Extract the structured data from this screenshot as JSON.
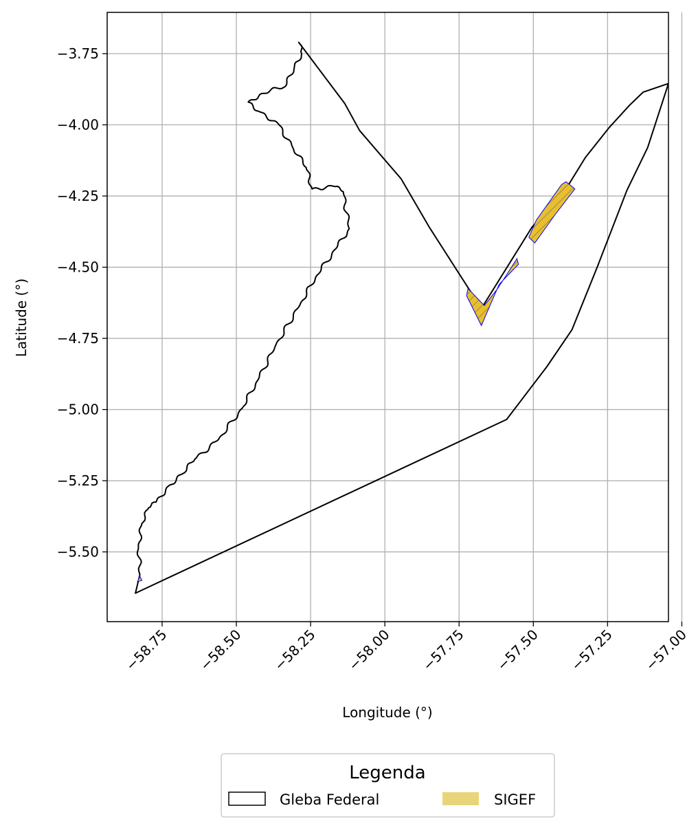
{
  "chart_data": {
    "type": "map",
    "xlabel": "Longitude (°)",
    "ylabel": "Latitude (°)",
    "xlim": [
      -58.935,
      -57.045
    ],
    "ylim": [
      -5.745,
      -3.605
    ],
    "x_ticks": [
      -58.75,
      -58.5,
      -58.25,
      -58.0,
      -57.75,
      -57.5,
      -57.25,
      -57.0
    ],
    "x_tick_labels": [
      "−58.75",
      "−58.50",
      "−58.25",
      "−58.00",
      "−57.75",
      "−57.50",
      "−57.25",
      "−57.00"
    ],
    "y_ticks": [
      -3.75,
      -4.0,
      -4.25,
      -4.5,
      -4.75,
      -5.0,
      -5.25,
      -5.5
    ],
    "y_tick_labels": [
      "−3.75",
      "−4.00",
      "−4.25",
      "−4.50",
      "−4.75",
      "−5.00",
      "−5.25",
      "−5.50"
    ],
    "grid": true,
    "legend": {
      "title": "Legenda",
      "placement": "bottom-center, outside plot",
      "entries": [
        {
          "label": "Gleba Federal",
          "style": "outline"
        },
        {
          "label": "SIGEF",
          "style": "fill"
        }
      ]
    },
    "layers": [
      {
        "name": "Gleba Federal",
        "color": "#000000",
        "fill": "none",
        "river_boundary_wiggle": true,
        "vertices": [
          [
            -58.84,
            -5.645
          ],
          [
            -58.825,
            -5.58
          ],
          [
            -58.83,
            -5.48
          ],
          [
            -58.818,
            -5.4
          ],
          [
            -58.795,
            -5.345
          ],
          [
            -58.77,
            -5.325
          ],
          [
            -58.73,
            -5.27
          ],
          [
            -58.68,
            -5.225
          ],
          [
            -58.64,
            -5.175
          ],
          [
            -58.56,
            -5.105
          ],
          [
            -58.48,
            -4.995
          ],
          [
            -58.43,
            -4.9
          ],
          [
            -58.37,
            -4.78
          ],
          [
            -58.285,
            -4.63
          ],
          [
            -58.23,
            -4.53
          ],
          [
            -58.165,
            -4.435
          ],
          [
            -58.12,
            -4.365
          ],
          [
            -58.14,
            -4.235
          ],
          [
            -58.175,
            -4.215
          ],
          [
            -58.245,
            -4.225
          ],
          [
            -58.265,
            -4.15
          ],
          [
            -58.31,
            -4.08
          ],
          [
            -58.36,
            -3.995
          ],
          [
            -58.42,
            -3.955
          ],
          [
            -58.46,
            -3.92
          ],
          [
            -58.415,
            -3.89
          ],
          [
            -58.335,
            -3.865
          ],
          [
            -58.305,
            -3.8
          ],
          [
            -58.28,
            -3.75
          ],
          [
            -58.29,
            -3.71
          ],
          [
            -58.135,
            -3.925
          ],
          [
            -58.085,
            -4.02
          ],
          [
            -57.945,
            -4.19
          ],
          [
            -57.85,
            -4.36
          ],
          [
            -57.675,
            -4.645
          ],
          [
            -57.505,
            -4.36
          ],
          [
            -57.39,
            -4.225
          ],
          [
            -57.325,
            -4.115
          ],
          [
            -57.245,
            -4.01
          ],
          [
            -57.175,
            -3.93
          ],
          [
            -57.13,
            -3.885
          ],
          [
            -57.045,
            -3.855
          ],
          [
            -57.115,
            -4.08
          ],
          [
            -57.185,
            -4.23
          ],
          [
            -57.285,
            -4.5
          ],
          [
            -57.37,
            -4.72
          ],
          [
            -57.455,
            -4.85
          ],
          [
            -57.59,
            -5.035
          ],
          [
            -58.84,
            -5.645
          ]
        ]
      },
      {
        "name": "SIGEF",
        "color": "#e8c02a",
        "edge_color": "#0000ff",
        "polygons": [
          [
            [
              -57.49,
              -4.335
            ],
            [
              -57.405,
              -4.21
            ],
            [
              -57.39,
              -4.2
            ],
            [
              -57.36,
              -4.225
            ],
            [
              -57.43,
              -4.32
            ],
            [
              -57.495,
              -4.415
            ],
            [
              -57.515,
              -4.395
            ],
            [
              -57.49,
              -4.335
            ]
          ],
          [
            [
              -57.72,
              -4.575
            ],
            [
              -57.665,
              -4.635
            ],
            [
              -57.62,
              -4.575
            ],
            [
              -57.555,
              -4.47
            ],
            [
              -57.55,
              -4.49
            ],
            [
              -57.615,
              -4.56
            ],
            [
              -57.675,
              -4.705
            ],
            [
              -57.725,
              -4.6
            ],
            [
              -57.72,
              -4.575
            ]
          ],
          [
            [
              -58.825,
              -5.585
            ],
            [
              -58.818,
              -5.6
            ],
            [
              -58.833,
              -5.605
            ],
            [
              -58.825,
              -5.585
            ]
          ]
        ]
      }
    ]
  }
}
